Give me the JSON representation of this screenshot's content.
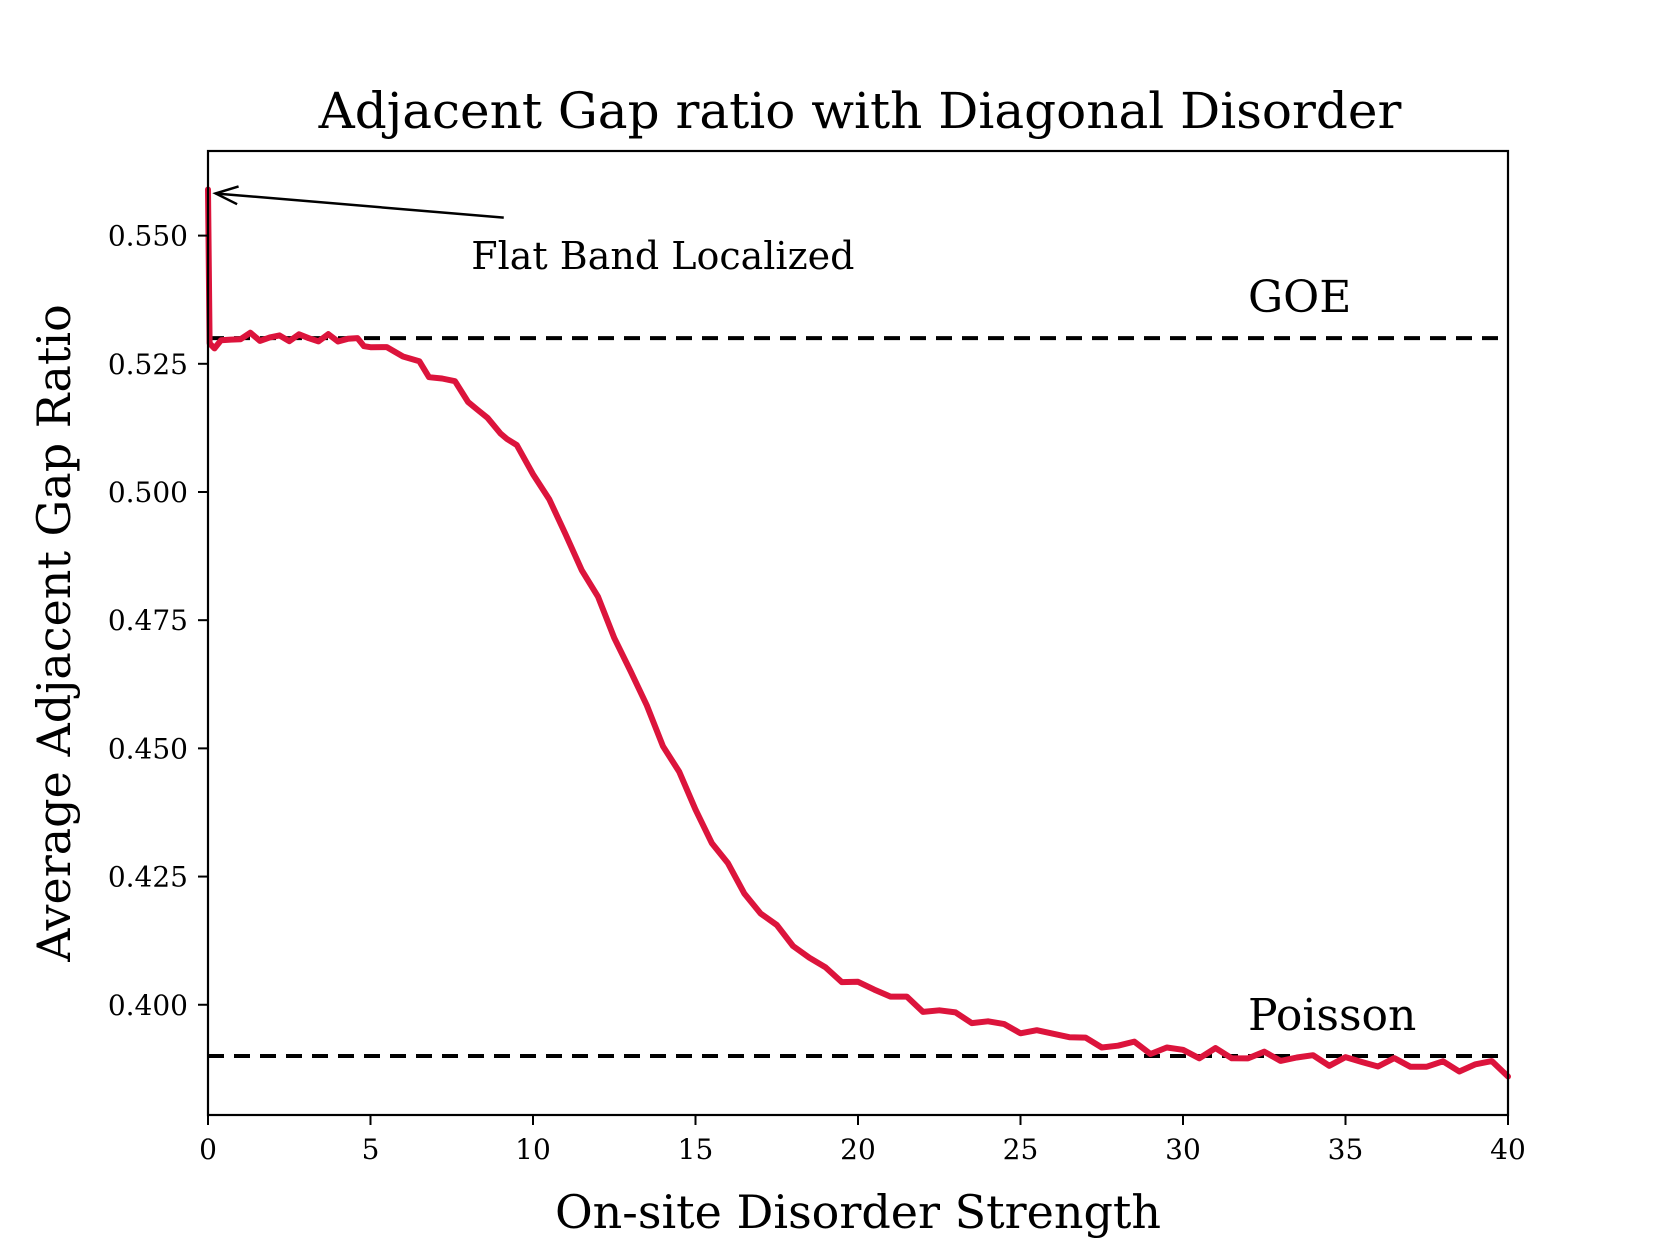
{
  "chart_data": {
    "type": "line",
    "title": "Adjacent Gap ratio with Diagonal Disorder",
    "xlabel": "On-site Disorder Strength",
    "ylabel": "Average Adjacent Gap Ratio",
    "xlim": [
      0,
      40
    ],
    "ylim": [
      0.3785,
      0.5665
    ],
    "x_ticks": [
      0,
      5,
      10,
      15,
      20,
      25,
      30,
      35,
      40
    ],
    "x_tick_labels": [
      "0",
      "5",
      "10",
      "15",
      "20",
      "25",
      "30",
      "35",
      "40"
    ],
    "y_ticks": [
      0.4,
      0.425,
      0.45,
      0.475,
      0.5,
      0.525,
      0.55
    ],
    "y_tick_labels": [
      "0.400",
      "0.425",
      "0.450",
      "0.475",
      "0.500",
      "0.525",
      "0.550"
    ],
    "series": [
      {
        "name": "average adjacent gap ratio",
        "color": "#dc143c",
        "x": [
          0,
          0.05,
          0.2,
          0.4,
          0.7,
          1.0,
          1.3,
          1.6,
          1.9,
          2.2,
          2.5,
          2.8,
          3.1,
          3.4,
          3.7,
          4.0,
          4.3,
          4.6,
          4.8,
          5.0,
          5.5,
          6.0,
          6.5,
          6.8,
          7.2,
          7.6,
          8.0,
          8.3,
          8.6,
          9.0,
          9.2,
          9.5,
          10.0,
          10.5,
          11.0,
          11.5,
          12.0,
          12.5,
          13.0,
          13.5,
          14.0,
          14.5,
          15.0,
          15.5,
          16.0,
          16.5,
          17.0,
          17.5,
          18.0,
          18.5,
          19.0,
          19.5,
          20.0,
          20.5,
          21.0,
          21.5,
          22.0,
          22.5,
          23.0,
          23.5,
          24.0,
          24.5,
          25.0,
          25.5,
          26.0,
          26.5,
          27.0,
          27.5,
          28.0,
          28.5,
          29.0,
          29.5,
          30.0,
          30.5,
          31.0,
          31.5,
          32.0,
          32.5,
          33.0,
          33.5,
          34.0,
          34.5,
          35.0,
          35.5,
          36.0,
          36.5,
          37.0,
          37.5,
          38.0,
          38.5,
          39.0,
          39.5,
          40.0
        ],
        "values": [
          0.559,
          0.529,
          0.528,
          0.529,
          0.53,
          0.53,
          0.5305,
          0.53,
          0.53,
          0.5302,
          0.53,
          0.5303,
          0.53,
          0.5298,
          0.5302,
          0.5297,
          0.53,
          0.5295,
          0.529,
          0.528,
          0.528,
          0.527,
          0.525,
          0.5225,
          0.5225,
          0.521,
          0.518,
          0.516,
          0.514,
          0.512,
          0.51,
          0.509,
          0.504,
          0.498,
          0.492,
          0.485,
          0.479,
          0.472,
          0.465,
          0.458,
          0.451,
          0.445,
          0.438,
          0.432,
          0.427,
          0.422,
          0.418,
          0.415,
          0.412,
          0.409,
          0.407,
          0.405,
          0.404,
          0.403,
          0.402,
          0.401,
          0.399,
          0.399,
          0.398,
          0.397,
          0.3965,
          0.396,
          0.395,
          0.3945,
          0.3945,
          0.394,
          0.393,
          0.3925,
          0.392,
          0.392,
          0.3915,
          0.391,
          0.391,
          0.3905,
          0.3905,
          0.39,
          0.39,
          0.3898,
          0.39,
          0.3895,
          0.3895,
          0.3892,
          0.389,
          0.3888,
          0.3888,
          0.3885,
          0.3885,
          0.3882,
          0.388,
          0.388,
          0.388,
          0.3885,
          0.386
        ]
      }
    ],
    "reference_lines": [
      {
        "name": "GOE",
        "y": 0.53,
        "style": "dashed",
        "color": "#000000"
      },
      {
        "name": "Poisson",
        "y": 0.39,
        "style": "dashed",
        "color": "#000000"
      }
    ],
    "annotations": [
      {
        "text": "Flat Band Localized",
        "target_x": 0.05,
        "target_y": 0.559,
        "arrow": true
      }
    ],
    "grid": false
  }
}
